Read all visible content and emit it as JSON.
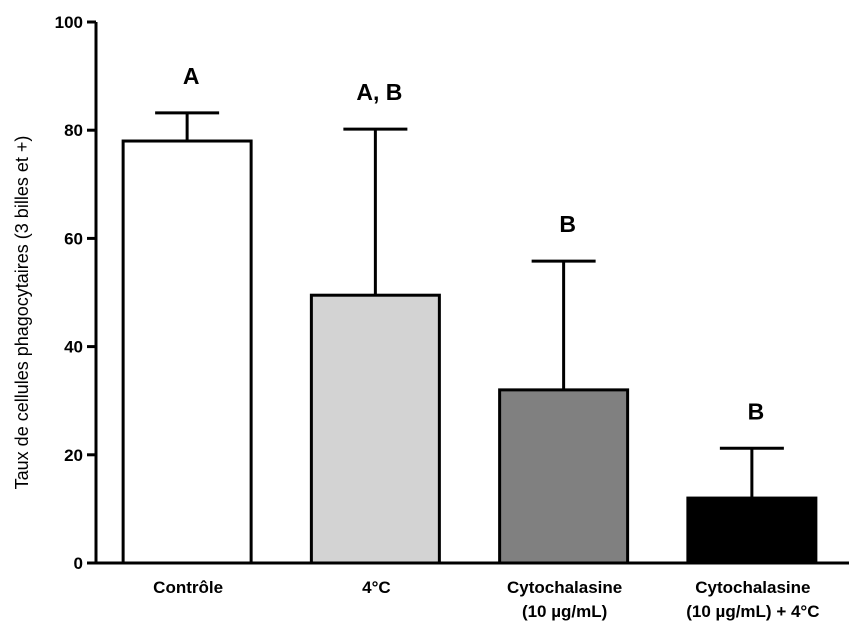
{
  "chart_data": {
    "type": "bar",
    "title": "",
    "xlabel": "",
    "ylabel": "Taux de cellules phagocytaires (3 billes et +)",
    "ylim": [
      0,
      100
    ],
    "yticks": [
      "0",
      "20",
      "40",
      "60",
      "80",
      "100"
    ],
    "grid": false,
    "categories": [
      [
        "Contrôle"
      ],
      [
        "4°C"
      ],
      [
        "Cytochalasine",
        "(10 µg/mL)"
      ],
      [
        "Cytochalasine",
        "(10 µg/mL) + 4°C"
      ]
    ],
    "values": [
      78,
      49.5,
      32,
      12
    ],
    "error_upper": [
      83.2,
      80.2,
      55.8,
      21.2
    ],
    "significance": [
      "A",
      "A, B",
      "B",
      "B"
    ],
    "bar_colors": [
      "#ffffff",
      "#d3d3d3",
      "#808080",
      "#000000"
    ]
  }
}
